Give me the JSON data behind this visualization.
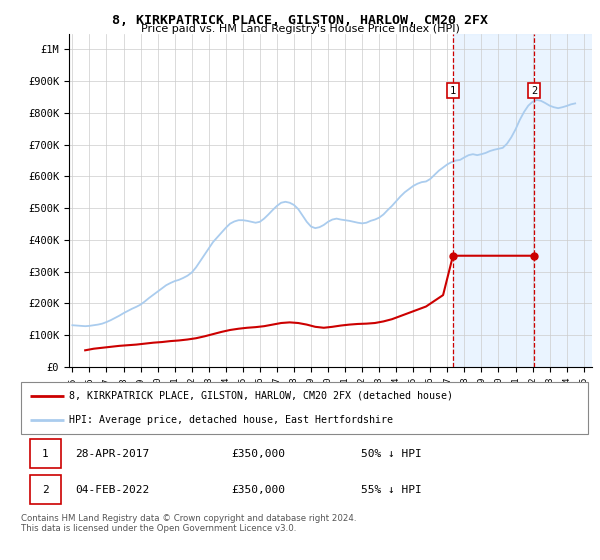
{
  "title": "8, KIRKPATRICK PLACE, GILSTON, HARLOW, CM20 2FX",
  "subtitle": "Price paid vs. HM Land Registry's House Price Index (HPI)",
  "ylabel_ticks": [
    "£0",
    "£100K",
    "£200K",
    "£300K",
    "£400K",
    "£500K",
    "£600K",
    "£700K",
    "£800K",
    "£900K",
    "£1M"
  ],
  "ytick_vals": [
    0,
    100000,
    200000,
    300000,
    400000,
    500000,
    600000,
    700000,
    800000,
    900000,
    1000000
  ],
  "ylim": [
    0,
    1050000
  ],
  "xlim_start": 1994.8,
  "xlim_end": 2025.5,
  "xtick_years": [
    1995,
    1996,
    1997,
    1998,
    1999,
    2000,
    2001,
    2002,
    2003,
    2004,
    2005,
    2006,
    2007,
    2008,
    2009,
    2010,
    2011,
    2012,
    2013,
    2014,
    2015,
    2016,
    2017,
    2018,
    2019,
    2020,
    2021,
    2022,
    2023,
    2024,
    2025
  ],
  "hpi_color": "#aaccee",
  "price_color": "#cc0000",
  "vline_color": "#cc0000",
  "background_fill": "#ddeeff",
  "marker1_x": 2017.33,
  "marker1_y": 350000,
  "marker2_x": 2022.08,
  "marker2_y": 350000,
  "legend_label1": "8, KIRKPATRICK PLACE, GILSTON, HARLOW, CM20 2FX (detached house)",
  "legend_label2": "HPI: Average price, detached house, East Hertfordshire",
  "table_row1": [
    "1",
    "28-APR-2017",
    "£350,000",
    "50% ↓ HPI"
  ],
  "table_row2": [
    "2",
    "04-FEB-2022",
    "£350,000",
    "55% ↓ HPI"
  ],
  "footer": "Contains HM Land Registry data © Crown copyright and database right 2024.\nThis data is licensed under the Open Government Licence v3.0.",
  "hpi_data_x": [
    1995.0,
    1995.25,
    1995.5,
    1995.75,
    1996.0,
    1996.25,
    1996.5,
    1996.75,
    1997.0,
    1997.25,
    1997.5,
    1997.75,
    1998.0,
    1998.25,
    1998.5,
    1998.75,
    1999.0,
    1999.25,
    1999.5,
    1999.75,
    2000.0,
    2000.25,
    2000.5,
    2000.75,
    2001.0,
    2001.25,
    2001.5,
    2001.75,
    2002.0,
    2002.25,
    2002.5,
    2002.75,
    2003.0,
    2003.25,
    2003.5,
    2003.75,
    2004.0,
    2004.25,
    2004.5,
    2004.75,
    2005.0,
    2005.25,
    2005.5,
    2005.75,
    2006.0,
    2006.25,
    2006.5,
    2006.75,
    2007.0,
    2007.25,
    2007.5,
    2007.75,
    2008.0,
    2008.25,
    2008.5,
    2008.75,
    2009.0,
    2009.25,
    2009.5,
    2009.75,
    2010.0,
    2010.25,
    2010.5,
    2010.75,
    2011.0,
    2011.25,
    2011.5,
    2011.75,
    2012.0,
    2012.25,
    2012.5,
    2012.75,
    2013.0,
    2013.25,
    2013.5,
    2013.75,
    2014.0,
    2014.25,
    2014.5,
    2014.75,
    2015.0,
    2015.25,
    2015.5,
    2015.75,
    2016.0,
    2016.25,
    2016.5,
    2016.75,
    2017.0,
    2017.25,
    2017.5,
    2017.75,
    2018.0,
    2018.25,
    2018.5,
    2018.75,
    2019.0,
    2019.25,
    2019.5,
    2019.75,
    2020.0,
    2020.25,
    2020.5,
    2020.75,
    2021.0,
    2021.25,
    2021.5,
    2021.75,
    2022.0,
    2022.25,
    2022.5,
    2022.75,
    2023.0,
    2023.25,
    2023.5,
    2023.75,
    2024.0,
    2024.25,
    2024.5
  ],
  "hpi_data_y": [
    131000,
    130000,
    129000,
    128000,
    129000,
    131000,
    133000,
    136000,
    141000,
    147000,
    154000,
    161000,
    169000,
    176000,
    183000,
    189000,
    196000,
    206000,
    217000,
    227000,
    237000,
    247000,
    257000,
    264000,
    270000,
    274000,
    280000,
    287000,
    297000,
    313000,
    333000,
    353000,
    373000,
    393000,
    408000,
    423000,
    438000,
    451000,
    458000,
    462000,
    462000,
    460000,
    457000,
    454000,
    457000,
    467000,
    480000,
    494000,
    507000,
    517000,
    520000,
    517000,
    510000,
    497000,
    477000,
    457000,
    442000,
    437000,
    440000,
    447000,
    457000,
    464000,
    467000,
    464000,
    462000,
    460000,
    457000,
    454000,
    452000,
    454000,
    460000,
    464000,
    470000,
    480000,
    494000,
    507000,
    522000,
    537000,
    550000,
    560000,
    570000,
    577000,
    582000,
    584000,
    592000,
    605000,
    618000,
    628000,
    638000,
    645000,
    650000,
    652000,
    660000,
    667000,
    670000,
    667000,
    670000,
    674000,
    680000,
    684000,
    687000,
    690000,
    703000,
    723000,
    748000,
    778000,
    803000,
    823000,
    835000,
    841000,
    838000,
    831000,
    823000,
    818000,
    815000,
    818000,
    822000,
    827000,
    830000
  ],
  "price_data_x": [
    1995.75,
    1996.25,
    1996.75,
    1997.25,
    1997.75,
    1998.25,
    1998.75,
    1999.25,
    1999.75,
    2000.25,
    2000.75,
    2001.25,
    2001.75,
    2002.25,
    2002.75,
    2003.25,
    2003.75,
    2004.25,
    2004.75,
    2005.25,
    2005.75,
    2006.25,
    2006.75,
    2007.25,
    2007.75,
    2008.25,
    2008.75,
    2009.25,
    2009.75,
    2010.25,
    2010.75,
    2011.25,
    2011.75,
    2012.25,
    2012.75,
    2013.25,
    2013.75,
    2014.25,
    2014.75,
    2015.25,
    2015.75,
    2016.25,
    2016.75,
    2017.33,
    2022.08
  ],
  "price_data_y": [
    52000,
    57000,
    60000,
    63000,
    66000,
    68000,
    70000,
    73000,
    76000,
    78000,
    81000,
    83000,
    86000,
    90000,
    96000,
    103000,
    110000,
    116000,
    120000,
    123000,
    125000,
    128000,
    133000,
    138000,
    140000,
    138000,
    133000,
    126000,
    123000,
    126000,
    130000,
    133000,
    135000,
    136000,
    138000,
    143000,
    150000,
    160000,
    170000,
    180000,
    190000,
    208000,
    226000,
    350000,
    350000
  ]
}
